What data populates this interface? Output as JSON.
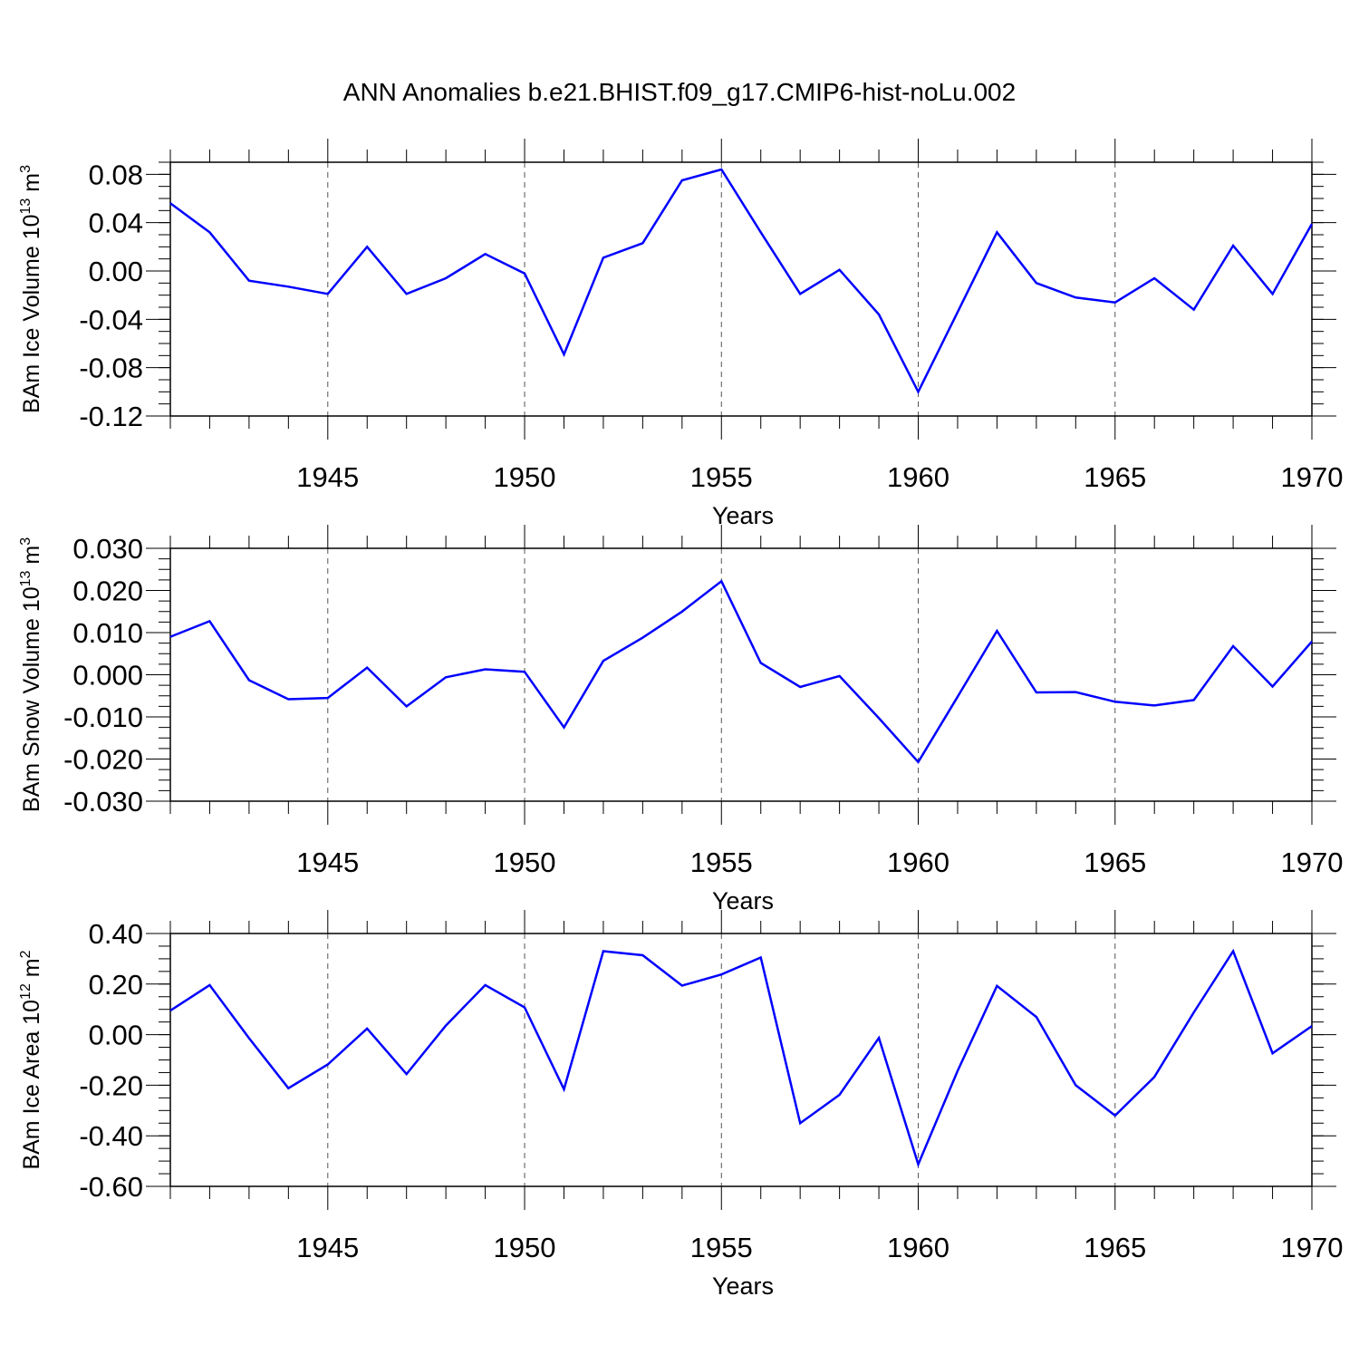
{
  "title": "ANN Anomalies b.e21.BHIST.f09_g17.CMIP6-hist-noLu.002",
  "colors": {
    "line": "#0000ff",
    "axis": "#000000",
    "grid": "#555555"
  },
  "chart_data": [
    {
      "type": "line",
      "ylabel": "BAm Ice Volume 10",
      "ylabel_sup": "13",
      "ylabel_unit": "m",
      "ylabel_unit_sup": "3",
      "xlabel": "Years",
      "xlim": [
        1941,
        1970
      ],
      "ylim": [
        -0.12,
        0.09
      ],
      "xticks": [
        1945,
        1950,
        1955,
        1960,
        1965,
        1970
      ],
      "xtick_labels": [
        "1945",
        "1950",
        "1955",
        "1960",
        "1965",
        "1970"
      ],
      "yticks": [
        -0.12,
        -0.08,
        -0.04,
        0.0,
        0.04,
        0.08
      ],
      "ytick_labels": [
        "-0.12",
        "-0.08",
        "-0.04",
        "0.00",
        "0.04",
        "0.08"
      ],
      "y_minor_step": 0.01,
      "grid": "vertical dashed at major x ticks",
      "x": [
        1941,
        1942,
        1943,
        1944,
        1945,
        1946,
        1947,
        1948,
        1949,
        1950,
        1951,
        1952,
        1953,
        1954,
        1955,
        1956,
        1957,
        1958,
        1959,
        1960,
        1961,
        1962,
        1963,
        1964,
        1965,
        1966,
        1967,
        1968,
        1969,
        1970
      ],
      "y": [
        0.056,
        0.032,
        -0.008,
        -0.013,
        -0.019,
        0.02,
        -0.019,
        -0.006,
        0.014,
        -0.002,
        -0.069,
        0.011,
        0.023,
        0.075,
        0.084,
        0.032,
        -0.019,
        0.001,
        -0.036,
        -0.1,
        -0.034,
        0.032,
        -0.01,
        -0.022,
        -0.026,
        -0.006,
        -0.032,
        0.021,
        -0.019,
        0.039
      ]
    },
    {
      "type": "line",
      "ylabel": "BAm Snow Volume 10",
      "ylabel_sup": "13",
      "ylabel_unit": "m",
      "ylabel_unit_sup": "3",
      "xlabel": "Years",
      "xlim": [
        1941,
        1970
      ],
      "ylim": [
        -0.03,
        0.03
      ],
      "xticks": [
        1945,
        1950,
        1955,
        1960,
        1965,
        1970
      ],
      "xtick_labels": [
        "1945",
        "1950",
        "1955",
        "1960",
        "1965",
        "1970"
      ],
      "yticks": [
        -0.03,
        -0.02,
        -0.01,
        0.0,
        0.01,
        0.02,
        0.03
      ],
      "ytick_labels": [
        "-0.030",
        "-0.020",
        "-0.010",
        "0.000",
        "0.010",
        "0.020",
        "0.030"
      ],
      "y_minor_step": 0.0025,
      "grid": "vertical dashed at major x ticks",
      "x": [
        1941,
        1942,
        1943,
        1944,
        1945,
        1946,
        1947,
        1948,
        1949,
        1950,
        1951,
        1952,
        1953,
        1954,
        1955,
        1956,
        1957,
        1958,
        1959,
        1960,
        1961,
        1962,
        1963,
        1964,
        1965,
        1966,
        1967,
        1968,
        1969,
        1970
      ],
      "y": [
        0.009,
        0.0127,
        -0.0013,
        -0.0058,
        -0.0055,
        0.0017,
        -0.0075,
        -0.0006,
        0.0013,
        0.0007,
        -0.0125,
        0.0033,
        0.0088,
        0.015,
        0.0222,
        0.0028,
        -0.0029,
        -0.0003,
        -0.0103,
        -0.0207,
        -0.0052,
        0.0104,
        -0.0042,
        -0.0041,
        -0.0064,
        -0.0073,
        -0.006,
        0.0068,
        -0.0028,
        0.0079
      ]
    },
    {
      "type": "line",
      "ylabel": "BAm Ice Area 10",
      "ylabel_sup": "12",
      "ylabel_unit": "m",
      "ylabel_unit_sup": "2",
      "xlabel": "Years",
      "xlim": [
        1941,
        1970
      ],
      "ylim": [
        -0.6,
        0.4
      ],
      "xticks": [
        1945,
        1950,
        1955,
        1960,
        1965,
        1970
      ],
      "xtick_labels": [
        "1945",
        "1950",
        "1955",
        "1960",
        "1965",
        "1970"
      ],
      "yticks": [
        -0.6,
        -0.4,
        -0.2,
        0.0,
        0.2,
        0.4
      ],
      "ytick_labels": [
        "-0.60",
        "-0.40",
        "-0.20",
        "0.00",
        "0.20",
        "0.40"
      ],
      "y_minor_step": 0.05,
      "grid": "vertical dashed at major x ticks",
      "x": [
        1941,
        1942,
        1943,
        1944,
        1945,
        1946,
        1947,
        1948,
        1949,
        1950,
        1951,
        1952,
        1953,
        1954,
        1955,
        1956,
        1957,
        1958,
        1959,
        1960,
        1961,
        1962,
        1963,
        1964,
        1965,
        1966,
        1967,
        1968,
        1969,
        1970
      ],
      "y": [
        0.095,
        0.196,
        -0.014,
        -0.212,
        -0.118,
        0.024,
        -0.156,
        0.036,
        0.196,
        0.108,
        -0.216,
        0.33,
        0.314,
        0.194,
        0.238,
        0.305,
        -0.35,
        -0.238,
        -0.013,
        -0.513,
        -0.143,
        0.193,
        0.07,
        -0.2,
        -0.32,
        -0.167,
        0.088,
        0.33,
        -0.074,
        0.034
      ]
    }
  ]
}
